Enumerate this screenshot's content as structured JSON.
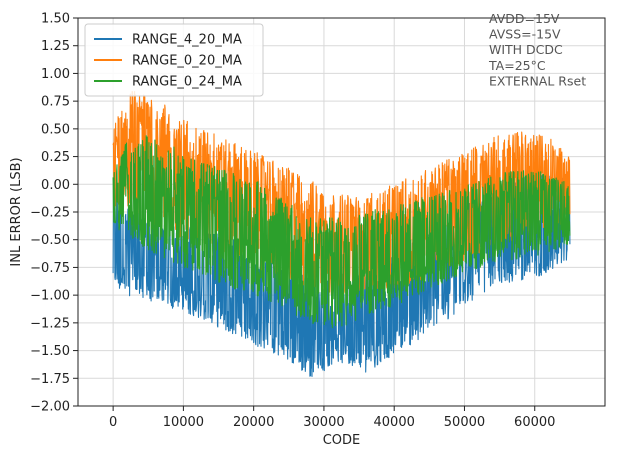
{
  "chart_data": {
    "type": "line",
    "xlabel": "CODE",
    "ylabel": "INL ERROR (LSB)",
    "xlim": [
      -5000,
      70000
    ],
    "ylim": [
      -2.0,
      1.5
    ],
    "xticks": [
      0,
      10000,
      20000,
      30000,
      40000,
      50000,
      60000
    ],
    "xtick_labels": [
      "0",
      "10000",
      "20000",
      "30000",
      "40000",
      "50000",
      "60000"
    ],
    "yticks": [
      1.5,
      1.25,
      1.0,
      0.75,
      0.5,
      0.25,
      0.0,
      -0.25,
      -0.5,
      -0.75,
      -1.0,
      -1.25,
      -1.5,
      -1.75,
      -2.0
    ],
    "ytick_labels": [
      "1.50",
      "1.25",
      "1.00",
      "0.75",
      "0.50",
      "0.25",
      "0.00",
      "−0.25",
      "−0.50",
      "−0.75",
      "−1.00",
      "−1.25",
      "−1.50",
      "−1.75",
      "−2.00"
    ],
    "grid": true,
    "legend_position": "top-left",
    "annotations": [
      "AVDD=15V",
      "AVSS=-15V",
      "WITH DCDC",
      "TA=25°C",
      "EXTERNAL Rset"
    ],
    "series": [
      {
        "name": "RANGE_4_20_MA",
        "color": "#1f77b4",
        "envelope_x": [
          0,
          2000,
          5000,
          10000,
          15000,
          20000,
          25000,
          28000,
          30000,
          33000,
          36000,
          40000,
          45000,
          50000,
          55000,
          60000,
          65000
        ],
        "upper": [
          0.05,
          -0.2,
          -0.3,
          -0.35,
          -0.45,
          -0.55,
          -0.75,
          -0.85,
          -0.85,
          -0.8,
          -0.75,
          -0.6,
          -0.45,
          -0.2,
          0.0,
          0.1,
          0.05
        ],
        "lower": [
          -0.9,
          -1.0,
          -1.05,
          -1.15,
          -1.3,
          -1.45,
          -1.6,
          -1.75,
          -1.7,
          -1.6,
          -1.7,
          -1.55,
          -1.35,
          -1.1,
          -0.9,
          -0.85,
          -0.7
        ]
      },
      {
        "name": "RANGE_0_20_MA",
        "color": "#ff7f0e",
        "envelope_x": [
          0,
          2000,
          5000,
          10000,
          15000,
          20000,
          25000,
          28000,
          30000,
          33000,
          36000,
          40000,
          45000,
          50000,
          55000,
          60000,
          65000
        ],
        "upper": [
          0.5,
          0.85,
          0.85,
          0.6,
          0.45,
          0.3,
          0.15,
          0.05,
          -0.05,
          -0.1,
          -0.1,
          0.0,
          0.15,
          0.3,
          0.45,
          0.5,
          0.3
        ],
        "lower": [
          -0.3,
          -0.2,
          -0.35,
          -0.5,
          -0.6,
          -0.75,
          -0.85,
          -0.95,
          -1.0,
          -1.0,
          -0.95,
          -0.95,
          -0.85,
          -0.7,
          -0.55,
          -0.45,
          -0.35
        ]
      },
      {
        "name": "RANGE_0_24_MA",
        "color": "#2ca02c",
        "envelope_x": [
          0,
          2000,
          5000,
          10000,
          15000,
          20000,
          25000,
          28000,
          30000,
          33000,
          36000,
          40000,
          45000,
          50000,
          55000,
          60000,
          65000
        ],
        "upper": [
          0.1,
          0.4,
          0.45,
          0.3,
          0.15,
          0.05,
          -0.15,
          -0.25,
          -0.3,
          -0.3,
          -0.25,
          -0.15,
          -0.1,
          0.0,
          0.1,
          0.15,
          0.0
        ],
        "lower": [
          -0.4,
          -0.45,
          -0.6,
          -0.75,
          -0.9,
          -1.0,
          -1.15,
          -1.25,
          -1.3,
          -1.3,
          -1.2,
          -1.1,
          -0.95,
          -0.8,
          -0.7,
          -0.65,
          -0.55
        ]
      }
    ]
  }
}
